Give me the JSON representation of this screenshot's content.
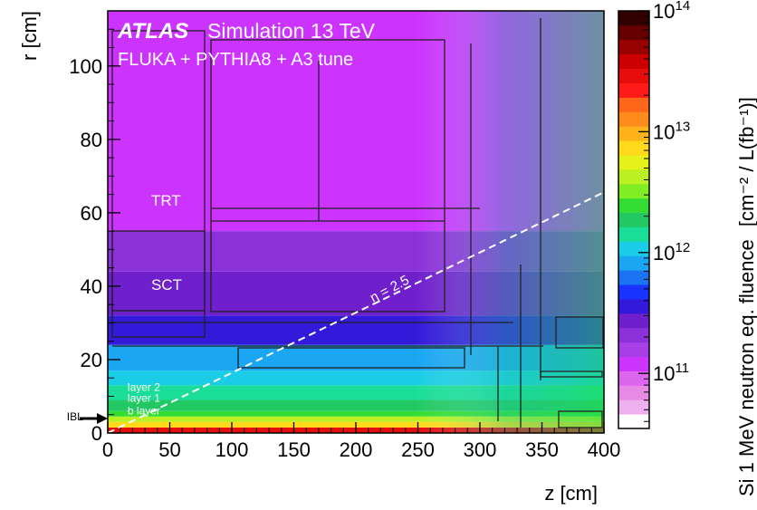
{
  "chart_data": {
    "type": "heatmap",
    "title_atlas": "ATLAS",
    "title_rest": "Simulation 13 TeV",
    "subtitle": "FLUKA + PYTHIA8 + A3 tune",
    "xlabel": "z [cm]",
    "ylabel": "r [cm]",
    "xlim": [
      0,
      400
    ],
    "ylim": [
      0,
      115
    ],
    "x_ticks": [
      0,
      50,
      100,
      150,
      200,
      250,
      300,
      350,
      400
    ],
    "y_ticks": [
      0,
      20,
      40,
      60,
      80,
      100
    ],
    "colorbar": {
      "label": "Si 1 MeV neutron eq. fluence",
      "units": "[cm⁻² / L(fb⁻¹)]",
      "scale": "log",
      "range": [
        35000000000.0,
        100000000000000.0
      ],
      "tick_labels": [
        {
          "base": "10",
          "exp": "14",
          "value": 100000000000000.0
        },
        {
          "base": "10",
          "exp": "13",
          "value": 10000000000000.0
        },
        {
          "base": "10",
          "exp": "12",
          "value": 1000000000000.0
        },
        {
          "base": "10",
          "exp": "11",
          "value": 100000000000.0
        }
      ],
      "palette": [
        "#ffffff",
        "#eeb0ee",
        "#e68ae6",
        "#dd66ee",
        "#cc33ff",
        "#a640e6",
        "#8c30d9",
        "#6f1fcc",
        "#3319d9",
        "#1a33ff",
        "#1a73f2",
        "#1aa6f2",
        "#1acce6",
        "#1add99",
        "#22c864",
        "#33dd33",
        "#80ee22",
        "#bbf022",
        "#e6f01a",
        "#ffd91a",
        "#ffb31a",
        "#ff8c1a",
        "#ff661a",
        "#ff1a1a",
        "#e60d0d",
        "#cc0000",
        "#990000",
        "#660000",
        "#330000"
      ]
    },
    "regions": [
      {
        "z": [
          0,
          400
        ],
        "r": [
          0,
          1.5
        ],
        "log10_fluence": 13.5
      },
      {
        "z": [
          0,
          400
        ],
        "r": [
          1.5,
          3
        ],
        "log10_fluence": 12.9
      },
      {
        "z": [
          0,
          400
        ],
        "r": [
          3,
          4.5
        ],
        "log10_fluence": 12.6
      },
      {
        "z": [
          0,
          400
        ],
        "r": [
          4.5,
          6
        ],
        "log10_fluence": 12.45
      },
      {
        "z": [
          0,
          400
        ],
        "r": [
          6,
          9
        ],
        "log10_fluence": 12.3
      },
      {
        "z": [
          0,
          400
        ],
        "r": [
          9,
          13
        ],
        "log10_fluence": 12.15
      },
      {
        "z": [
          0,
          400
        ],
        "r": [
          13,
          17
        ],
        "log10_fluence": 12.0
      },
      {
        "z": [
          0,
          400
        ],
        "r": [
          17,
          24
        ],
        "log10_fluence": 11.9
      },
      {
        "z": [
          0,
          400
        ],
        "r": [
          24,
          32
        ],
        "log10_fluence": 11.5
      },
      {
        "z": [
          0,
          400
        ],
        "r": [
          32,
          44
        ],
        "log10_fluence": 11.45
      },
      {
        "z": [
          0,
          400
        ],
        "r": [
          44,
          55
        ],
        "log10_fluence": 11.3
      },
      {
        "z": [
          0,
          400
        ],
        "r": [
          55,
          115
        ],
        "log10_fluence": 11.1
      }
    ],
    "labels": [
      {
        "text": "TRT",
        "z": 35,
        "r": 62
      },
      {
        "text": "SCT",
        "z": 35,
        "r": 39
      },
      {
        "text": "layer 2",
        "z": 16,
        "r": 11.5
      },
      {
        "text": "layer 1",
        "z": 16,
        "r": 8.5
      },
      {
        "text": "b layer",
        "z": 16,
        "r": 5
      },
      {
        "text": "IBL",
        "z": -33,
        "r": 3.5
      }
    ],
    "eta_line": {
      "label": "η = 2.5",
      "z0": 0,
      "r0": 0,
      "z1": 400,
      "r1": 65.6
    }
  }
}
